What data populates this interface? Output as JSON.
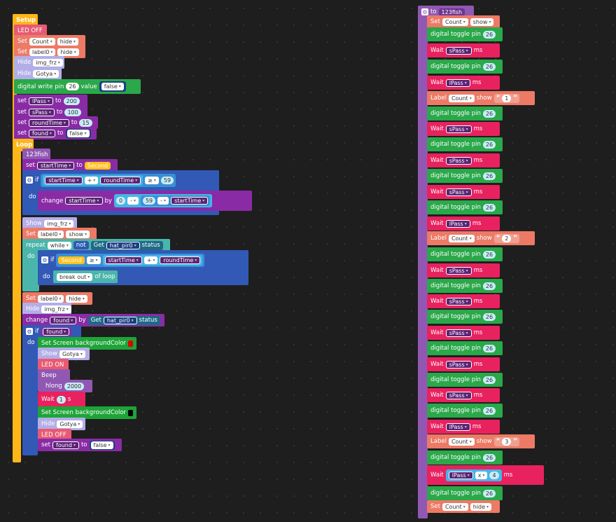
{
  "setup": {
    "title": "Setup",
    "led_off": "LED OFF",
    "set_count": {
      "kw": "Set",
      "target": "Count",
      "action": "hide"
    },
    "set_label0": {
      "kw": "Set",
      "target": "label0",
      "action": "hide"
    },
    "hide_img": {
      "kw": "Hide",
      "target": "img_frz"
    },
    "hide_gotya": {
      "kw": "Hide",
      "target": "Gotya"
    },
    "digital_write": {
      "kw": "digital write pin",
      "pin": "26",
      "value_kw": "value",
      "value": "false"
    },
    "set_lpass": {
      "kw": "set",
      "var": "lPass",
      "to": "to",
      "val": "200"
    },
    "set_spass": {
      "kw": "set",
      "var": "sPass",
      "to": "to",
      "val": "100"
    },
    "set_roundtime": {
      "kw": "set",
      "var": "roundTime",
      "to": "to",
      "val": "15"
    },
    "set_found": {
      "kw": "set",
      "var": "found",
      "to": "to",
      "val": "false"
    }
  },
  "loop": {
    "title": "Loop",
    "call": "123fish",
    "set_start": {
      "kw": "set",
      "var": "startTime",
      "to": "to",
      "val": "Second"
    },
    "if1": {
      "kw": "if",
      "a": "startTime",
      "op": "+",
      "b": "roundTime",
      "cmp": "≥",
      "val": "59"
    },
    "do": "do",
    "change1": {
      "kw": "change",
      "var": "startTime",
      "by": "by",
      "a": "0",
      "op": "-",
      "b": "59",
      "op2": "-",
      "c": "startTime"
    },
    "show_img": {
      "kw": "Show",
      "target": "img_frz"
    },
    "set_label0_show": {
      "kw": "Set",
      "target": "label0",
      "action": "show"
    },
    "repeat": {
      "kw": "repeat",
      "mode": "while",
      "not": "not",
      "get": "Get",
      "src": "hat_pir0",
      "status": "status"
    },
    "if2": {
      "kw": "if",
      "a": "Second",
      "cmp": "≥",
      "b": "startTime",
      "op": "+",
      "c": "roundTime"
    },
    "break": {
      "text": "break out",
      "of": "of loop"
    },
    "set_label0_hide": {
      "kw": "Set",
      "target": "label0",
      "action": "hide"
    },
    "hide_img": {
      "kw": "Hide",
      "target": "img_frz"
    },
    "change_found": {
      "kw": "change",
      "var": "found",
      "by": "by",
      "get": "Get",
      "src": "hat_pir0",
      "status": "status"
    },
    "if3": {
      "kw": "if",
      "var": "found"
    },
    "set_bg_red": {
      "kw": "Set Screen backgroundColor",
      "color": "#e00000"
    },
    "show_gotya": {
      "kw": "Show",
      "target": "Gotya"
    },
    "led_on": "LED ON",
    "beep": {
      "kw": "Beep",
      "hlong": "hlong",
      "val": "2000"
    },
    "wait1": {
      "kw": "Wait",
      "val": "1",
      "unit": "s"
    },
    "set_bg_black": {
      "kw": "Set Screen backgroundColor",
      "color": "#000000"
    },
    "hide_gotya": {
      "kw": "Hide",
      "target": "Gotya"
    },
    "led_off": "LED OFF",
    "set_found_false": {
      "kw": "set",
      "var": "found",
      "to": "to",
      "val": "false"
    }
  },
  "fn": {
    "header": {
      "to": "to",
      "name": "123fish"
    },
    "set_count_show": {
      "kw": "Set",
      "target": "Count",
      "action": "show"
    },
    "toggle": "digital toggle pin",
    "pin": "26",
    "wait": "Wait",
    "ms": "ms",
    "spass": "sPass",
    "lpass": "lPass",
    "label": "Label",
    "count": "Count",
    "show": "show",
    "lbl1": "1",
    "lbl2": "2",
    "lbl3": "3",
    "times": "x",
    "mult": "4",
    "set_count_hide": {
      "kw": "Set",
      "target": "Count",
      "action": "hide"
    }
  },
  "colors": {
    "red": "#e00000",
    "black": "#000000"
  }
}
